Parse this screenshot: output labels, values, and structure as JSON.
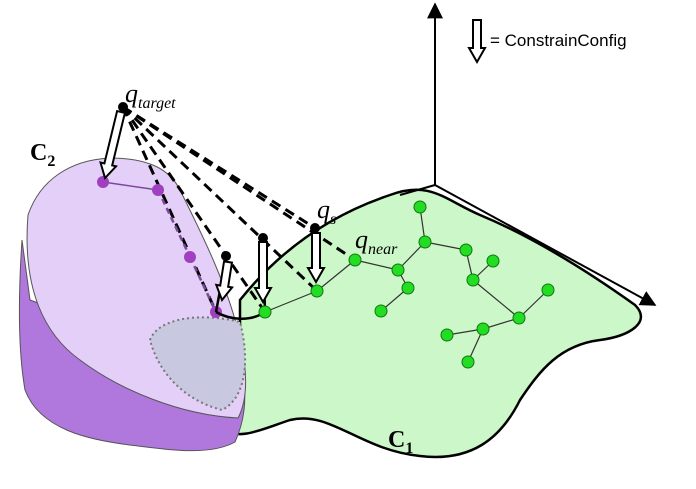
{
  "legend": "= ConstrainConfig",
  "labels": [
    {
      "base": "q",
      "sub": "target"
    },
    {
      "base": "C",
      "sub": "2"
    },
    {
      "base": "q",
      "sub": "s"
    },
    {
      "base": "q",
      "sub": "near"
    },
    {
      "base": "C",
      "sub": "1"
    }
  ]
}
